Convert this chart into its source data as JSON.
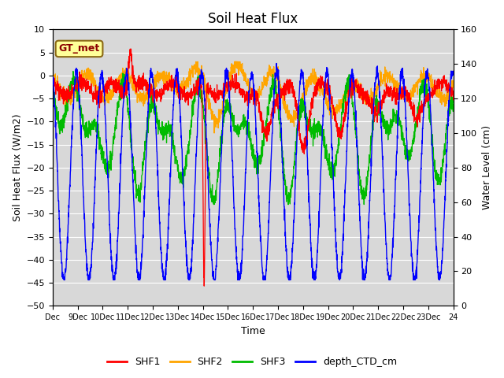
{
  "title": "Soil Heat Flux",
  "xlabel": "Time",
  "ylabel_left": "Soil Heat Flux (W/m2)",
  "ylabel_right": "Water Level (cm)",
  "ylim_left": [
    -50,
    10
  ],
  "ylim_right": [
    0,
    160
  ],
  "yticks_left": [
    -50,
    -45,
    -40,
    -35,
    -30,
    -25,
    -20,
    -15,
    -10,
    -5,
    0,
    5,
    10
  ],
  "yticks_right": [
    0,
    20,
    40,
    60,
    80,
    100,
    120,
    140,
    160
  ],
  "xtick_labels": [
    "Dec",
    "9Dec",
    "10Dec",
    "11Dec",
    "12Dec",
    "13Dec",
    "14Dec",
    "15Dec",
    "16Dec",
    "17Dec",
    "18Dec",
    "19Dec",
    "20Dec",
    "21Dec",
    "22Dec",
    "23Dec",
    "24"
  ],
  "box_label": "GT_met",
  "legend_labels": [
    "SHF1",
    "SHF2",
    "SHF3",
    "depth_CTD_cm"
  ],
  "colors": {
    "SHF1": "#ff0000",
    "SHF2": "#ffa500",
    "SHF3": "#00bb00",
    "depth_CTD_cm": "#0000ff"
  },
  "background_color": "#d8d8d8",
  "grid_color": "#ffffff",
  "title_fontsize": 12,
  "axis_fontsize": 9,
  "tick_fontsize": 8
}
